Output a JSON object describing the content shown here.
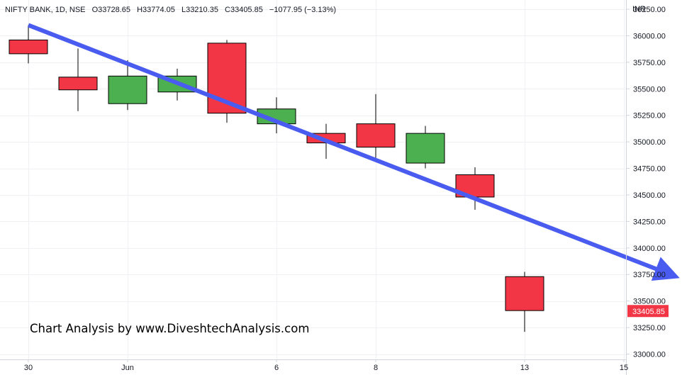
{
  "header": {
    "symbol": "NIFTY BANK, 1D, NSE",
    "open": "O33728.65",
    "high": "H33774.05",
    "low": "L33210.35",
    "close": "C33405.85",
    "change": "−1077.95 (−3.13%)"
  },
  "currency": "INR",
  "watermark": "Chart Analysis by www.DiveshtechAnalysis.com",
  "last_price_label": "33405.85",
  "colors": {
    "up": "#4caf50",
    "down": "#f23645",
    "trendline": "#4a5cf0",
    "grid": "#eef0f3",
    "border": "#d1d4dc"
  },
  "chart_data": {
    "type": "candlestick",
    "ylim": [
      32950,
      36300
    ],
    "y_ticks": [
      "36250.00",
      "36000.00",
      "35750.00",
      "35500.00",
      "35250.00",
      "35000.00",
      "34750.00",
      "34500.00",
      "34250.00",
      "34000.00",
      "33750.00",
      "33500.00",
      "33250.00",
      "33000.00"
    ],
    "x_ticks": [
      {
        "label": "30",
        "index": 0
      },
      {
        "label": "Jun",
        "index": 2
      },
      {
        "label": "6",
        "index": 5
      },
      {
        "label": "8",
        "index": 7
      },
      {
        "label": "13",
        "index": 10
      },
      {
        "label": "15",
        "index": 12
      }
    ],
    "candles": [
      {
        "index": 0,
        "open": 35960,
        "high": 36100,
        "low": 35740,
        "close": 35830
      },
      {
        "index": 1,
        "open": 35610,
        "high": 35880,
        "low": 35290,
        "close": 35490
      },
      {
        "index": 2,
        "open": 35360,
        "high": 35770,
        "low": 35300,
        "close": 35620
      },
      {
        "index": 3,
        "open": 35470,
        "high": 35690,
        "low": 35390,
        "close": 35620
      },
      {
        "index": 4,
        "open": 35930,
        "high": 35960,
        "low": 35180,
        "close": 35270
      },
      {
        "index": 5,
        "open": 35170,
        "high": 35420,
        "low": 35080,
        "close": 35310
      },
      {
        "index": 6,
        "open": 35080,
        "high": 35170,
        "low": 34840,
        "close": 34990
      },
      {
        "index": 7,
        "open": 35170,
        "high": 35450,
        "low": 34850,
        "close": 34950
      },
      {
        "index": 8,
        "open": 34800,
        "high": 35150,
        "low": 34750,
        "close": 35080
      },
      {
        "index": 9,
        "open": 34690,
        "high": 34760,
        "low": 34360,
        "close": 34480
      },
      {
        "index": 10,
        "open": 33730,
        "high": 33775,
        "low": 33210,
        "close": 33410
      }
    ],
    "trendline": {
      "start": {
        "index": 0,
        "value": 36100
      },
      "end": {
        "index": 13,
        "value": 33760
      }
    },
    "last_price": 33405.85
  }
}
